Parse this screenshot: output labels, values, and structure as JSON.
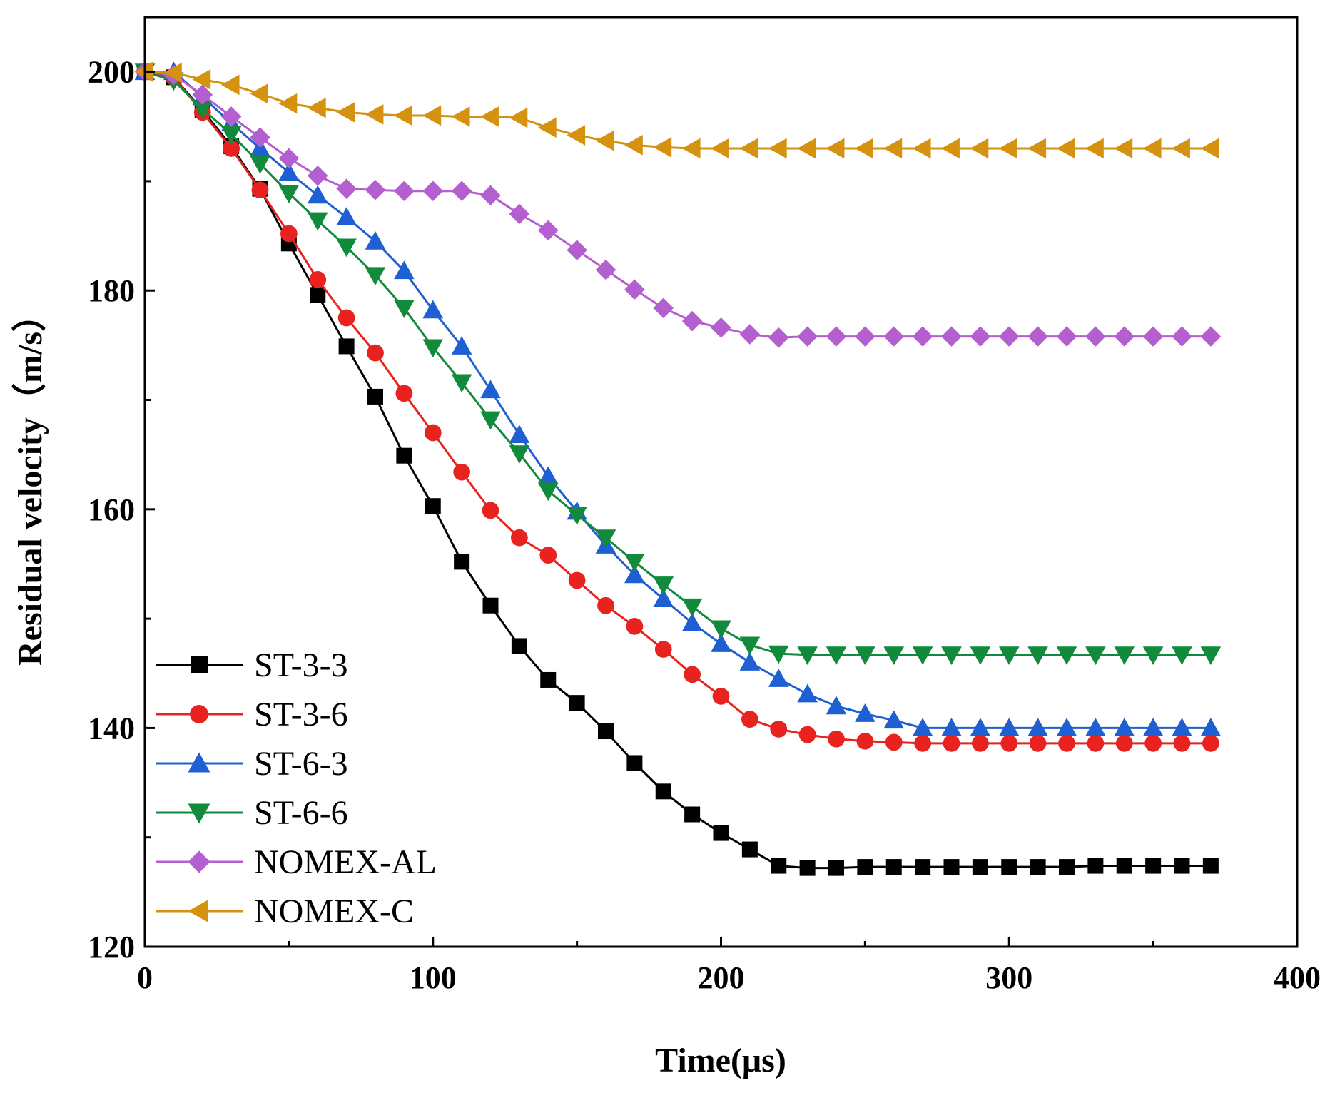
{
  "chart_data": {
    "type": "line",
    "title": "",
    "xlabel": "Time(μs)",
    "ylabel": "Residual velocity（m/s）",
    "xlim": [
      0,
      400
    ],
    "ylim": [
      120,
      205
    ],
    "xticks": [
      0,
      100,
      200,
      300,
      400
    ],
    "yticks": [
      120,
      140,
      160,
      180,
      200
    ],
    "grid": false,
    "legend": "bottom-left",
    "x": [
      0,
      10,
      20,
      30,
      40,
      50,
      60,
      70,
      80,
      90,
      100,
      110,
      120,
      130,
      140,
      150,
      160,
      170,
      180,
      190,
      200,
      210,
      220,
      230,
      240,
      250,
      260,
      270,
      280,
      290,
      300,
      310,
      320,
      330,
      340,
      350,
      360,
      370
    ],
    "series": [
      {
        "name": "ST-3-3",
        "color": "#000000",
        "marker": "square",
        "values": [
          200,
          199.5,
          196.5,
          193.2,
          189.3,
          184.3,
          179.6,
          174.9,
          170.3,
          164.9,
          160.3,
          155.2,
          151.2,
          147.5,
          144.4,
          142.3,
          139.7,
          136.8,
          134.2,
          132.1,
          130.4,
          128.9,
          127.4,
          127.2,
          127.2,
          127.3,
          127.3,
          127.3,
          127.3,
          127.3,
          127.3,
          127.3,
          127.3,
          127.4,
          127.4,
          127.4,
          127.4,
          127.4
        ]
      },
      {
        "name": "ST-3-6",
        "color": "#e8231f",
        "marker": "circle",
        "values": [
          200,
          199.5,
          196.3,
          193.0,
          189.2,
          185.2,
          181.0,
          177.5,
          174.3,
          170.6,
          167.0,
          163.4,
          159.9,
          157.4,
          155.8,
          153.5,
          151.2,
          149.3,
          147.2,
          144.9,
          142.9,
          140.8,
          139.9,
          139.4,
          139.0,
          138.8,
          138.7,
          138.6,
          138.6,
          138.6,
          138.6,
          138.6,
          138.6,
          138.6,
          138.6,
          138.6,
          138.6,
          138.6
        ]
      },
      {
        "name": "ST-6-3",
        "color": "#1f5fd4",
        "marker": "triangle-up",
        "values": [
          200,
          200.0,
          197.7,
          195.3,
          193.0,
          190.8,
          188.7,
          186.7,
          184.5,
          181.8,
          178.2,
          174.9,
          170.9,
          166.8,
          163.0,
          159.8,
          156.7,
          154.0,
          151.8,
          149.6,
          147.7,
          146.0,
          144.5,
          143.1,
          142.0,
          141.3,
          140.7,
          140.0,
          140.0,
          140.0,
          140.0,
          140.0,
          140.0,
          140.0,
          140.0,
          140.0,
          140.0,
          140.0
        ]
      },
      {
        "name": "ST-6-6",
        "color": "#118a3b",
        "marker": "triangle-down",
        "values": [
          200,
          199.2,
          196.6,
          194.3,
          191.6,
          188.9,
          186.4,
          184.0,
          181.4,
          178.4,
          174.8,
          171.6,
          168.2,
          165.1,
          161.7,
          159.5,
          157.4,
          155.2,
          153.1,
          151.1,
          149.1,
          147.6,
          146.8,
          146.7,
          146.7,
          146.7,
          146.7,
          146.7,
          146.7,
          146.7,
          146.7,
          146.7,
          146.7,
          146.7,
          146.7,
          146.7,
          146.7,
          146.7
        ]
      },
      {
        "name": "NOMEX-AL",
        "color": "#b45fcf",
        "marker": "diamond",
        "values": [
          200,
          199.7,
          197.9,
          195.9,
          194.0,
          192.1,
          190.5,
          189.3,
          189.2,
          189.1,
          189.1,
          189.1,
          188.7,
          187.0,
          185.5,
          183.7,
          181.9,
          180.1,
          178.4,
          177.2,
          176.6,
          176.0,
          175.7,
          175.8,
          175.8,
          175.8,
          175.8,
          175.8,
          175.8,
          175.8,
          175.8,
          175.8,
          175.8,
          175.8,
          175.8,
          175.8,
          175.8,
          175.8
        ]
      },
      {
        "name": "NOMEX-C",
        "color": "#d4920f",
        "marker": "triangle-left",
        "values": [
          200,
          199.9,
          199.3,
          198.8,
          198.0,
          197.1,
          196.7,
          196.3,
          196.1,
          196.0,
          196.0,
          195.9,
          195.9,
          195.8,
          194.9,
          194.2,
          193.7,
          193.3,
          193.1,
          193.0,
          193.0,
          193.0,
          193.0,
          193.0,
          193.0,
          193.0,
          193.0,
          193.0,
          193.0,
          193.0,
          193.0,
          193.0,
          193.0,
          193.0,
          193.0,
          193.0,
          193.0,
          193.0
        ]
      }
    ]
  }
}
